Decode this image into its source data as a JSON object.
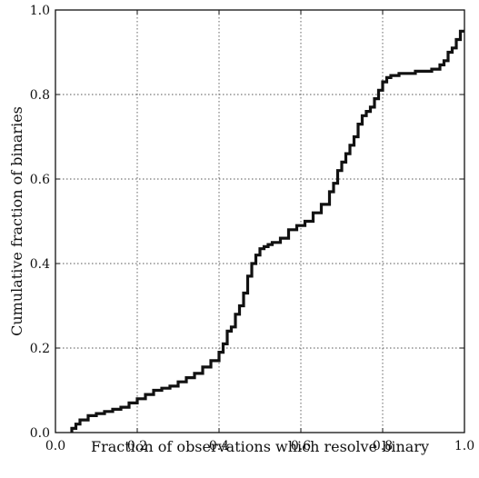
{
  "chart_data": {
    "type": "line",
    "xlabel": "Fraction of observations which resolve binary",
    "ylabel": "Cumulative fraction of binaries",
    "xlim": [
      0.0,
      1.0
    ],
    "ylim": [
      0.0,
      1.0
    ],
    "xticks": [
      0.0,
      0.2,
      0.4,
      0.6,
      0.8,
      1.0
    ],
    "yticks": [
      0.0,
      0.2,
      0.4,
      0.6,
      0.8,
      1.0
    ],
    "xtick_labels": [
      "0.0",
      "0.2",
      "0.4",
      "0.6",
      "0.8",
      "1.0"
    ],
    "ytick_labels": [
      "0.0",
      "0.2",
      "0.4",
      "0.6",
      "0.8",
      "1.0"
    ],
    "grid": true,
    "grid_style": "dotted",
    "line_color": "#111111",
    "series": [
      {
        "step": true,
        "x": [
          0.04,
          0.05,
          0.06,
          0.08,
          0.1,
          0.12,
          0.14,
          0.16,
          0.18,
          0.2,
          0.22,
          0.24,
          0.26,
          0.28,
          0.3,
          0.32,
          0.34,
          0.36,
          0.38,
          0.4,
          0.41,
          0.42,
          0.43,
          0.44,
          0.45,
          0.46,
          0.47,
          0.48,
          0.49,
          0.5,
          0.51,
          0.52,
          0.53,
          0.55,
          0.57,
          0.59,
          0.61,
          0.63,
          0.65,
          0.67,
          0.68,
          0.69,
          0.7,
          0.71,
          0.72,
          0.73,
          0.74,
          0.75,
          0.76,
          0.77,
          0.78,
          0.79,
          0.8,
          0.81,
          0.82,
          0.84,
          0.86,
          0.88,
          0.9,
          0.92,
          0.94,
          0.95,
          0.96,
          0.97,
          0.98,
          0.99,
          1.0
        ],
        "y": [
          0.0,
          0.01,
          0.02,
          0.03,
          0.04,
          0.045,
          0.05,
          0.055,
          0.06,
          0.07,
          0.08,
          0.09,
          0.1,
          0.105,
          0.11,
          0.12,
          0.13,
          0.14,
          0.155,
          0.17,
          0.19,
          0.21,
          0.24,
          0.25,
          0.28,
          0.3,
          0.33,
          0.37,
          0.4,
          0.42,
          0.435,
          0.44,
          0.445,
          0.45,
          0.46,
          0.48,
          0.49,
          0.5,
          0.52,
          0.54,
          0.57,
          0.59,
          0.62,
          0.64,
          0.66,
          0.68,
          0.7,
          0.73,
          0.75,
          0.76,
          0.77,
          0.79,
          0.81,
          0.83,
          0.84,
          0.845,
          0.85,
          0.85,
          0.855,
          0.855,
          0.86,
          0.87,
          0.88,
          0.9,
          0.91,
          0.93,
          0.95
        ]
      }
    ]
  }
}
